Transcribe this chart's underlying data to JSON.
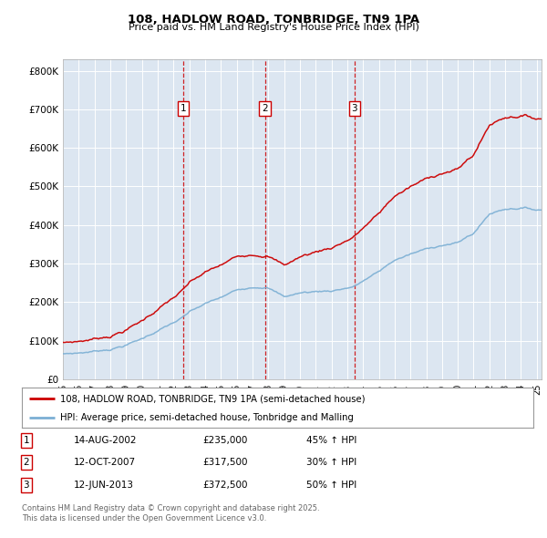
{
  "title1": "108, HADLOW ROAD, TONBRIDGE, TN9 1PA",
  "title2": "Price paid vs. HM Land Registry's House Price Index (HPI)",
  "bg_color": "#dce6f1",
  "red_line_color": "#cc0000",
  "blue_line_color": "#7bafd4",
  "sale1_date": "14-AUG-2002",
  "sale1_price": 235000,
  "sale1_label": "45% ↑ HPI",
  "sale2_date": "12-OCT-2007",
  "sale2_price": 317500,
  "sale2_label": "30% ↑ HPI",
  "sale3_date": "12-JUN-2013",
  "sale3_price": 372500,
  "sale3_label": "50% ↑ HPI",
  "legend_red": "108, HADLOW ROAD, TONBRIDGE, TN9 1PA (semi-detached house)",
  "legend_blue": "HPI: Average price, semi-detached house, Tonbridge and Malling",
  "footer1": "Contains HM Land Registry data © Crown copyright and database right 2025.",
  "footer2": "This data is licensed under the Open Government Licence v3.0.",
  "ylim_max": 830000,
  "yticks": [
    0,
    100000,
    200000,
    300000,
    400000,
    500000,
    600000,
    700000,
    800000
  ],
  "ytick_labels": [
    "£0",
    "£100K",
    "£200K",
    "£300K",
    "£400K",
    "£500K",
    "£600K",
    "£700K",
    "£800K"
  ]
}
